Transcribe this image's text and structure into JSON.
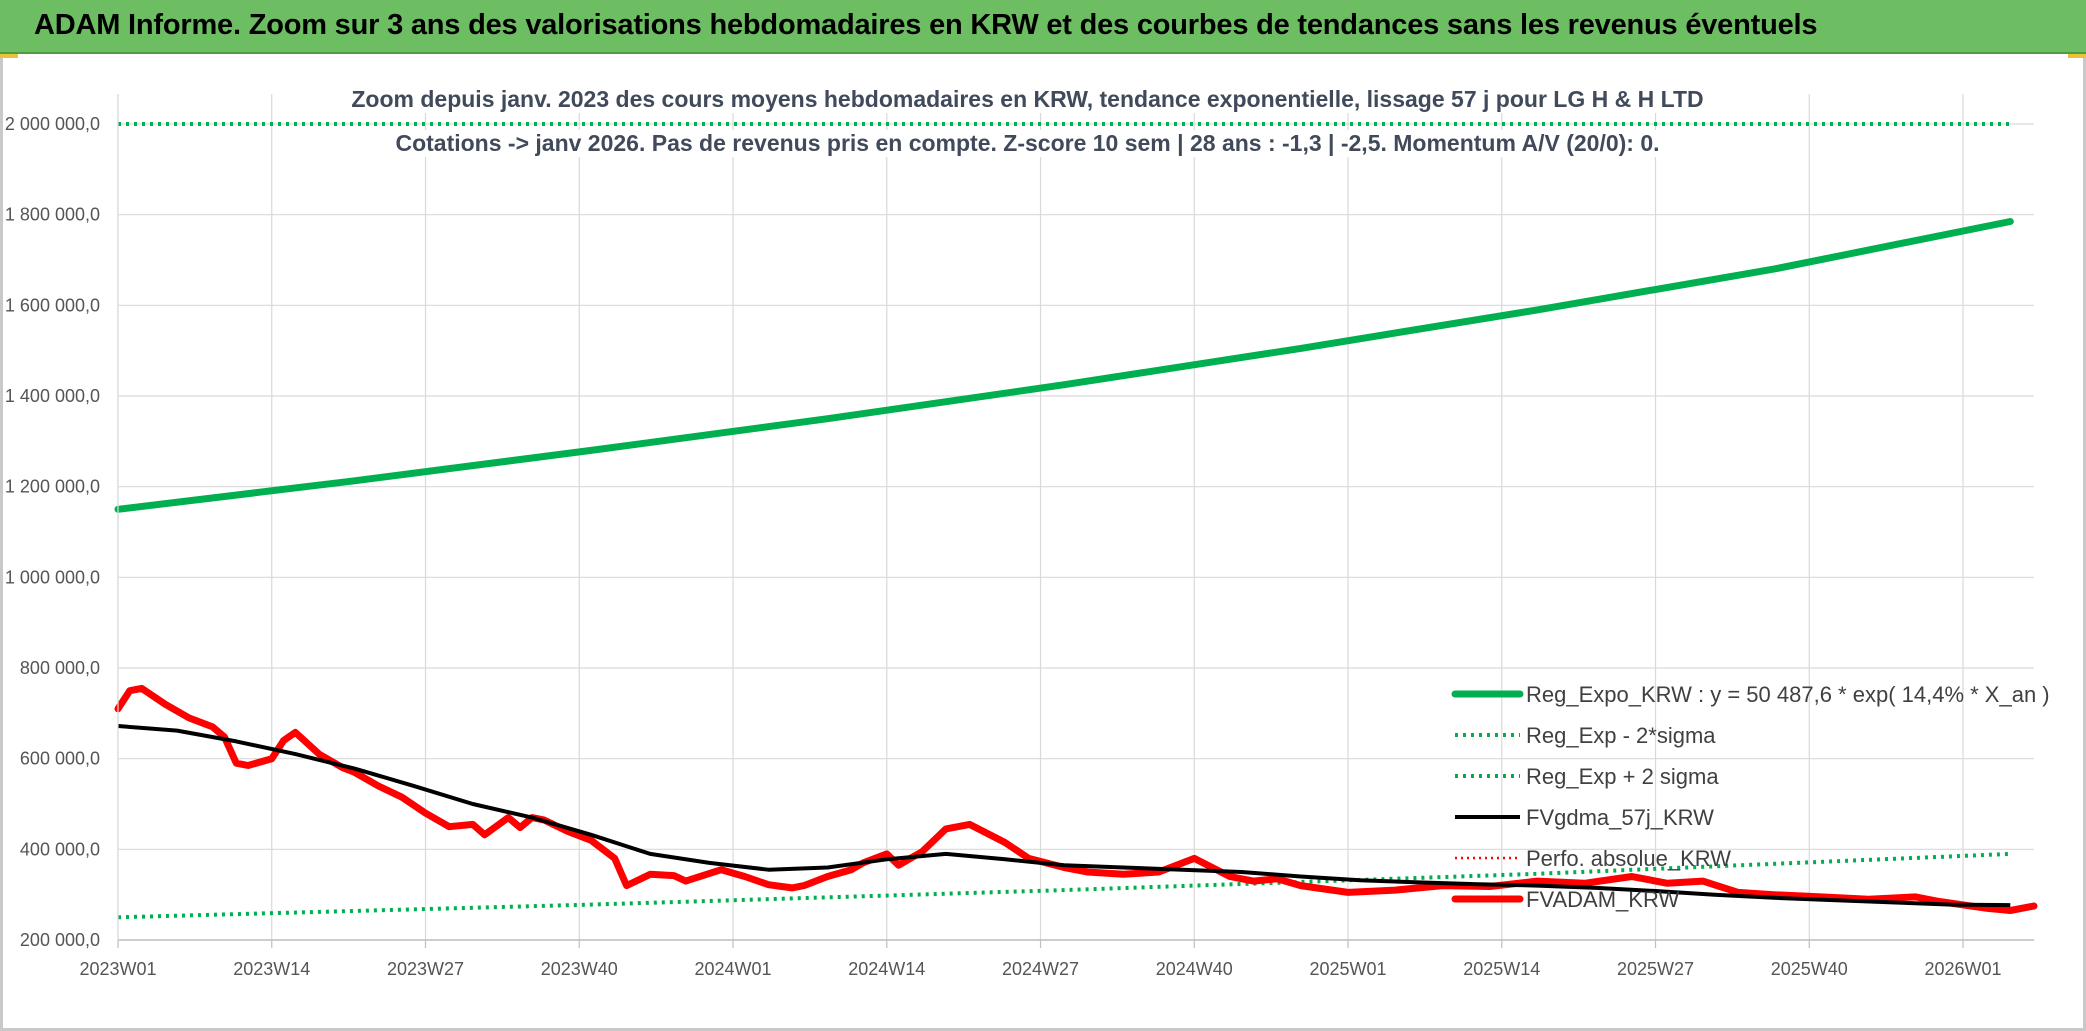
{
  "banner": {
    "title": "ADAM Informe. Zoom sur 3 ans des valorisations hebdomadaires en KRW et des courbes de tendances sans les revenus éventuels"
  },
  "chart_data": {
    "type": "line",
    "title": "Zoom depuis janv. 2023 des cours moyens hebdomadaires en KRW, tendance exponentielle, lissage 57 j pour LG H & H LTD",
    "subtitle": "Cotations -> janv 2026. Pas de revenus pris en compte. Z-score 10 sem | 28 ans : -1,3 | -2,5. Momentum A/V (20/0): 0.",
    "xlabel": "",
    "ylabel": "",
    "ylim": [
      200000,
      2000000
    ],
    "y_ticks": [
      {
        "value": 200000,
        "label": "200 000,0"
      },
      {
        "value": 400000,
        "label": "400 000,0"
      },
      {
        "value": 600000,
        "label": "600 000,0"
      },
      {
        "value": 800000,
        "label": "800 000,0"
      },
      {
        "value": 1000000,
        "label": "1 000 000,0"
      },
      {
        "value": 1200000,
        "label": "1 200 000,0"
      },
      {
        "value": 1400000,
        "label": "1 400 000,0"
      },
      {
        "value": 1600000,
        "label": "1 600 000,0"
      },
      {
        "value": 1800000,
        "label": "1 800 000,0"
      },
      {
        "value": 2000000,
        "label": "2 000 000,0"
      }
    ],
    "x_range": [
      0,
      162
    ],
    "x_ticks": [
      {
        "index": 0,
        "label": "2023W01"
      },
      {
        "index": 13,
        "label": "2023W14"
      },
      {
        "index": 26,
        "label": "2023W27"
      },
      {
        "index": 39,
        "label": "2023W40"
      },
      {
        "index": 52,
        "label": "2024W01"
      },
      {
        "index": 65,
        "label": "2024W14"
      },
      {
        "index": 78,
        "label": "2024W27"
      },
      {
        "index": 91,
        "label": "2024W40"
      },
      {
        "index": 104,
        "label": "2025W01"
      },
      {
        "index": 117,
        "label": "2025W14"
      },
      {
        "index": 130,
        "label": "2025W27"
      },
      {
        "index": 143,
        "label": "2025W40"
      },
      {
        "index": 156,
        "label": "2026W01"
      }
    ],
    "grid": true,
    "legend_position": "bottom-right",
    "series": [
      {
        "name": "Reg_Expo_KRW : y = 50 487,6 * exp( 14,4% *  X_an )",
        "color": "#00b050",
        "style": "solid-thick",
        "x": [
          0,
          20,
          40,
          60,
          80,
          100,
          120,
          140,
          160
        ],
        "y": [
          1150000,
          1213000,
          1280000,
          1350000,
          1425000,
          1505000,
          1590000,
          1680000,
          1785000
        ]
      },
      {
        "name": "Reg_Exp - 2*sigma",
        "color": "#00b050",
        "style": "dotted",
        "x": [
          0,
          40,
          80,
          120,
          160
        ],
        "y": [
          250000,
          278000,
          310000,
          346000,
          390000
        ]
      },
      {
        "name": "Reg_Exp + 2 sigma",
        "color": "#00b050",
        "style": "dotted",
        "x": [
          0,
          160
        ],
        "y": [
          2000000,
          2000000
        ]
      },
      {
        "name": "FVgdma_57j_KRW",
        "color": "#000000",
        "style": "solid",
        "x": [
          0,
          5,
          10,
          15,
          20,
          25,
          30,
          35,
          40,
          45,
          50,
          55,
          60,
          65,
          70,
          75,
          80,
          85,
          90,
          95,
          100,
          105,
          110,
          115,
          120,
          125,
          130,
          135,
          140,
          145,
          150,
          155,
          160
        ],
        "y": [
          672000,
          662000,
          638000,
          610000,
          578000,
          540000,
          500000,
          470000,
          432000,
          390000,
          370000,
          355000,
          360000,
          378000,
          390000,
          378000,
          365000,
          360000,
          355000,
          350000,
          340000,
          332000,
          327000,
          323000,
          320000,
          315000,
          308000,
          300000,
          293000,
          288000,
          283000,
          278000,
          277000
        ]
      },
      {
        "name": "Perfo. absolue_KRW",
        "color": "#ff0000",
        "style": "dotted-thin",
        "x": [],
        "y": []
      },
      {
        "name": "FVADAM_KRW",
        "color": "#ff0000",
        "style": "solid-thick",
        "x": [
          0,
          1,
          2,
          4,
          6,
          8,
          9,
          10,
          11,
          13,
          14,
          15,
          17,
          19,
          20,
          22,
          24,
          26,
          28,
          30,
          31,
          33,
          34,
          35,
          36,
          38,
          40,
          42,
          43,
          45,
          47,
          48,
          51,
          53,
          55,
          57,
          58,
          60,
          62,
          63,
          65,
          66,
          68,
          70,
          72,
          75,
          77,
          80,
          82,
          85,
          88,
          91,
          94,
          96,
          98,
          100,
          104,
          108,
          112,
          116,
          120,
          124,
          128,
          131,
          134,
          137,
          140,
          144,
          148,
          152,
          154,
          158,
          160,
          162
        ],
        "y": [
          710000,
          750000,
          755000,
          720000,
          690000,
          670000,
          648000,
          590000,
          585000,
          600000,
          640000,
          658000,
          610000,
          580000,
          570000,
          540000,
          515000,
          480000,
          450000,
          455000,
          432000,
          470000,
          448000,
          470000,
          465000,
          440000,
          420000,
          380000,
          320000,
          345000,
          342000,
          330000,
          355000,
          340000,
          322000,
          315000,
          320000,
          340000,
          355000,
          370000,
          390000,
          365000,
          395000,
          445000,
          455000,
          415000,
          380000,
          360000,
          350000,
          345000,
          350000,
          380000,
          340000,
          330000,
          335000,
          320000,
          305000,
          310000,
          320000,
          318000,
          330000,
          325000,
          340000,
          325000,
          330000,
          305000,
          300000,
          295000,
          290000,
          295000,
          285000,
          270000,
          265000,
          275000
        ]
      }
    ]
  }
}
